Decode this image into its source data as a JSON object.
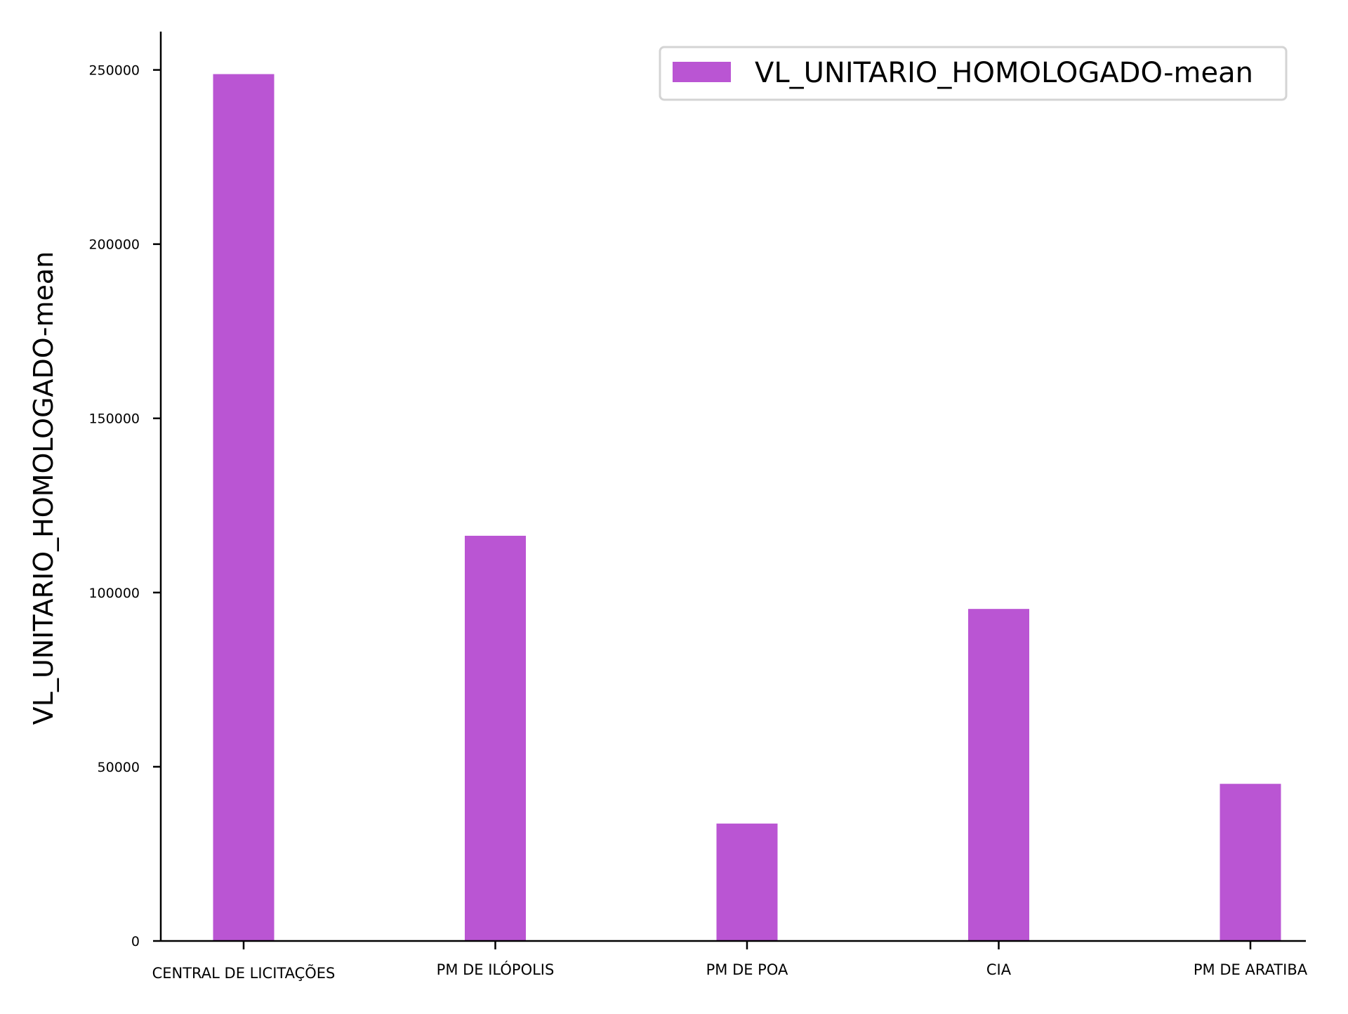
{
  "chart_data": {
    "type": "bar",
    "title": "",
    "xlabel": "",
    "ylabel": "VL_UNITARIO_HOMOLOGADO-mean",
    "categories": [
      "CENTRAL DE LICITAÇÕES",
      "PM DE ILÓPOLIS",
      "PM DE POA",
      "CIA",
      "PM DE ARATIBA"
    ],
    "series": [
      {
        "name": "VL_UNITARIO_HOMOLOGADO-mean",
        "values": [
          248800,
          116300,
          33700,
          95300,
          45100
        ],
        "color": "#ba55d3"
      }
    ],
    "ylim": [
      0,
      261000
    ],
    "yticks": [
      0,
      50000,
      100000,
      150000,
      200000,
      250000
    ],
    "ytick_labels": [
      "0",
      "50000",
      "100000",
      "150000",
      "200000",
      "250000"
    ],
    "grid": false,
    "legend_position": "top-right"
  }
}
